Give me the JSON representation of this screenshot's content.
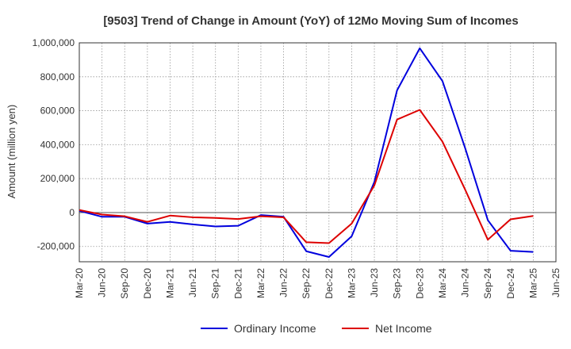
{
  "chart_data": {
    "type": "line",
    "title": "[9503]  Trend of Change in Amount (YoY) of 12Mo Moving Sum of Incomes",
    "xlabel": "",
    "ylabel": "Amount (million yen)",
    "ylim": [
      -290000,
      1000000
    ],
    "yticks": [
      -200000,
      0,
      200000,
      400000,
      600000,
      800000,
      1000000
    ],
    "ytick_labels": [
      "-200,000",
      "0",
      "200,000",
      "400,000",
      "600,000",
      "800,000",
      "1,000,000"
    ],
    "grid": true,
    "legend_position": "bottom-center",
    "x": [
      "Mar-20",
      "Jun-20",
      "Sep-20",
      "Dec-20",
      "Mar-21",
      "Jun-21",
      "Sep-21",
      "Dec-21",
      "Mar-22",
      "Jun-22",
      "Sep-22",
      "Dec-22",
      "Mar-23",
      "Jun-23",
      "Sep-23",
      "Dec-23",
      "Mar-24",
      "Jun-24",
      "Sep-24",
      "Dec-24",
      "Mar-25",
      "Jun-25"
    ],
    "series": [
      {
        "name": "Ordinary Income",
        "color": "#0000dd",
        "values": [
          10000,
          -25000,
          -25000,
          -65000,
          -55000,
          -70000,
          -82000,
          -78000,
          -15000,
          -25000,
          -228000,
          -262000,
          -140000,
          180000,
          720000,
          968000,
          775000,
          380000,
          -45000,
          -225000,
          -232000,
          null
        ]
      },
      {
        "name": "Net Income",
        "color": "#dd0000",
        "values": [
          15000,
          -12000,
          -22000,
          -55000,
          -18000,
          -28000,
          -32000,
          -38000,
          -22000,
          -28000,
          -175000,
          -180000,
          -65000,
          160000,
          548000,
          605000,
          418000,
          135000,
          -160000,
          -40000,
          -20000,
          null
        ]
      }
    ]
  }
}
